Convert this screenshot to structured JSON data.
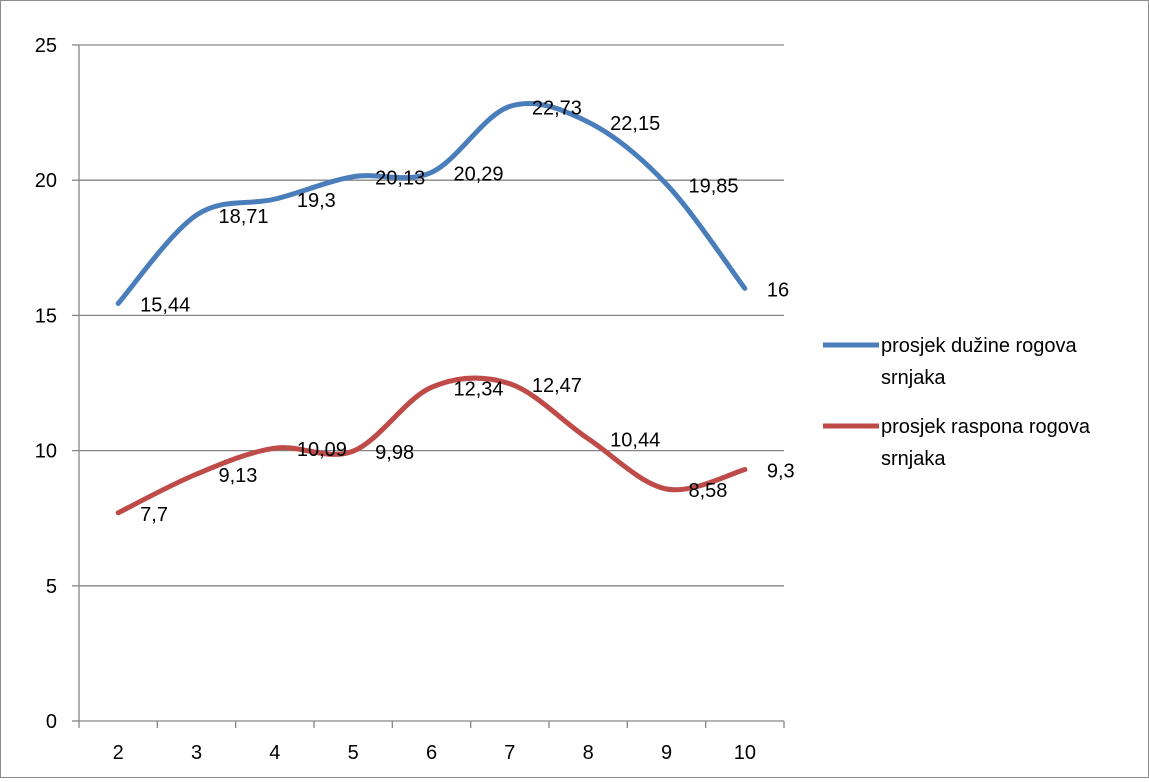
{
  "chart_data": {
    "type": "line",
    "title": "",
    "xlabel": "",
    "ylabel": "",
    "categories": [
      "2",
      "3",
      "4",
      "5",
      "6",
      "7",
      "8",
      "9",
      "10"
    ],
    "ylim": [
      0,
      25
    ],
    "yticks": [
      "0",
      "5",
      "10",
      "15",
      "20",
      "25"
    ],
    "grid": true,
    "legend_position": "right",
    "series": [
      {
        "name": "prosjek dužine rogova srnjaka",
        "legend_lines": [
          "prosjek dužine rogova",
          "srnjaka"
        ],
        "color": "#4a7ebb",
        "values": [
          15.44,
          18.71,
          19.3,
          20.13,
          20.29,
          22.73,
          22.15,
          19.85,
          16
        ],
        "labels": [
          "15,44",
          "18,71",
          "19,3",
          "20,13",
          "20,29",
          "22,73",
          "22,15",
          "19,85",
          "16"
        ]
      },
      {
        "name": "prosjek raspona rogova srnjaka",
        "legend_lines": [
          "prosjek raspona rogova",
          "srnjaka"
        ],
        "color": "#be4b48",
        "values": [
          7.7,
          9.13,
          10.09,
          9.98,
          12.34,
          12.47,
          10.44,
          8.58,
          9.3
        ],
        "labels": [
          "7,7",
          "9,13",
          "10,09",
          "9,98",
          "12,34",
          "12,47",
          "10,44",
          "8,58",
          "9,3"
        ]
      }
    ]
  }
}
